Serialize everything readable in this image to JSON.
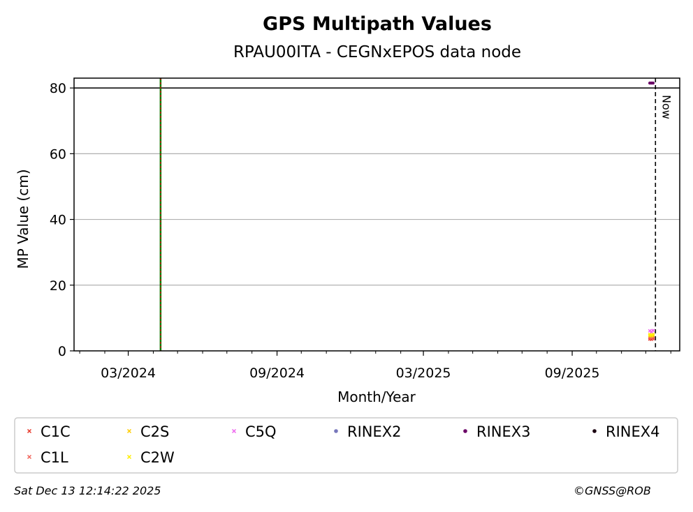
{
  "chart_data": {
    "type": "scatter",
    "title": "GPS Multipath Values",
    "subtitle": "RPAU00ITA - CEGNxEPOS data node",
    "xlabel": "Month/Year",
    "ylabel": "MP Value (cm)",
    "x_tick_labels": [
      "03/2024",
      "09/2024",
      "03/2025",
      "09/2025"
    ],
    "x_ticks": [
      "2024-03-01",
      "2024-09-01",
      "2025-03-01",
      "2025-09-01"
    ],
    "xlim": [
      "2023-12-25",
      "2026-01-12"
    ],
    "y_ticks": [
      0,
      20,
      40,
      60,
      80
    ],
    "ylim": [
      0,
      83
    ],
    "grid": "horizontal",
    "threshold_line": 80,
    "event_line_date": "2024-04-10",
    "now_date": "2025-12-13",
    "now_label": "Now",
    "series": [
      {
        "name": "C1C",
        "color": "#e8392b",
        "marker": "x",
        "points": [
          [
            "2025-12-06",
            3.6
          ],
          [
            "2025-12-08",
            3.5
          ],
          [
            "2025-12-10",
            3.7
          ]
        ]
      },
      {
        "name": "C1L",
        "color": "#f0645a",
        "marker": "x",
        "points": [
          [
            "2025-12-06",
            4.0
          ],
          [
            "2025-12-08",
            3.9
          ],
          [
            "2025-12-10",
            4.1
          ]
        ]
      },
      {
        "name": "C2S",
        "color": "#ffcc00",
        "marker": "x",
        "points": [
          [
            "2025-12-06",
            4.6
          ],
          [
            "2025-12-08",
            4.5
          ],
          [
            "2025-12-10",
            4.7
          ]
        ]
      },
      {
        "name": "C2W",
        "color": "#ffee00",
        "marker": "x",
        "points": [
          [
            "2025-12-06",
            5.0
          ],
          [
            "2025-12-08",
            4.9
          ],
          [
            "2025-12-10",
            5.1
          ]
        ]
      },
      {
        "name": "C5Q",
        "color": "#ee66ee",
        "marker": "x",
        "points": [
          [
            "2025-12-06",
            6.1
          ],
          [
            "2025-12-08",
            5.8
          ],
          [
            "2025-12-10",
            6.2
          ]
        ]
      },
      {
        "name": "RINEX2",
        "color": "#7777bb",
        "marker": "o",
        "points": []
      },
      {
        "name": "RINEX3",
        "color": "#6a0066",
        "marker": "o",
        "points": [
          [
            "2025-12-06",
            81.5
          ],
          [
            "2025-12-08",
            81.5
          ],
          [
            "2025-12-10",
            81.5
          ]
        ]
      },
      {
        "name": "RINEX4",
        "color": "#1a0010",
        "marker": "o",
        "points": []
      }
    ]
  },
  "footer": {
    "timestamp": "Sat Dec 13 12:14:22 2025",
    "copyright": "©GNSS@ROB"
  }
}
